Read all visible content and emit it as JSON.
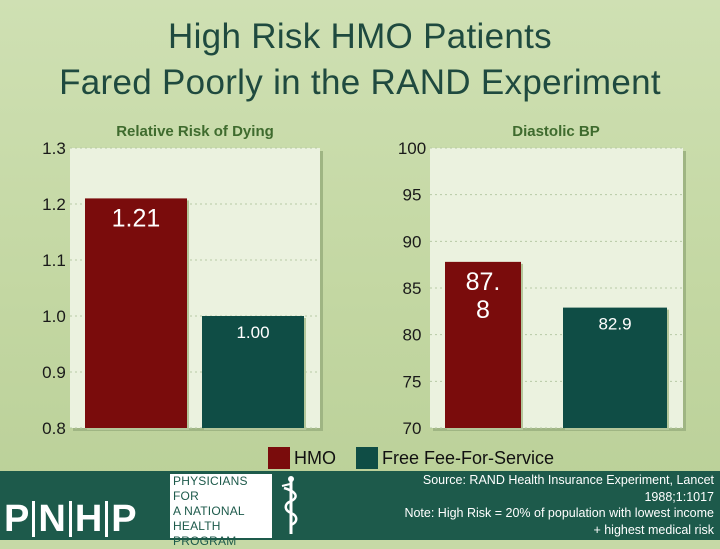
{
  "title": {
    "line1": "High Risk HMO Patients",
    "line2": "Fared Poorly in the RAND Experiment"
  },
  "legend": [
    {
      "label": "HMO",
      "color": "#7a0c0c"
    },
    {
      "label": "Free Fee-For-Service",
      "color": "#0f4d45"
    }
  ],
  "chart_data": [
    {
      "type": "bar",
      "title": "Relative Risk of Dying",
      "categories": [
        "HMO",
        "Free Fee-For-Service"
      ],
      "values": [
        1.21,
        1.0
      ],
      "value_labels": [
        "1.21",
        "1.00"
      ],
      "ylim": [
        0.8,
        1.3
      ],
      "yticks": [
        1.3,
        1.2,
        1.1,
        1.0,
        0.9,
        0.8
      ],
      "ytick_labels": [
        "1.3",
        "1.2",
        "1.1",
        "1.0",
        "0.9",
        "0.8"
      ],
      "grid": true
    },
    {
      "type": "bar",
      "title": "Diastolic BP",
      "categories": [
        "HMO",
        "Free Fee-For-Service"
      ],
      "values": [
        87.8,
        82.9
      ],
      "value_labels": [
        "87.\n8",
        "82.9"
      ],
      "ylim": [
        70,
        100
      ],
      "yticks": [
        100,
        95,
        90,
        85,
        80,
        75,
        70
      ],
      "ytick_labels": [
        "100",
        "95",
        "90",
        "85",
        "80",
        "75",
        "70"
      ],
      "grid": true
    }
  ],
  "footer": {
    "logo_letters": [
      "P",
      "N",
      "H",
      "P"
    ],
    "logo_text": [
      "PHYSICIANS FOR",
      "A NATIONAL",
      "HEALTH",
      "PROGRAM"
    ],
    "source_lines": [
      "Source: RAND Health Insurance Experiment, Lancet",
      "1988;1:1017",
      "Note: High Risk = 20% of population with lowest income",
      "+ highest medical risk"
    ]
  },
  "colors": {
    "hmo": "#7a0c0c",
    "ffs": "#0f4d45",
    "plot_bg": "#ebf2df",
    "title": "#1f4a3f",
    "chart_title": "#3f6b2e",
    "footer": "#1d5a4b"
  }
}
